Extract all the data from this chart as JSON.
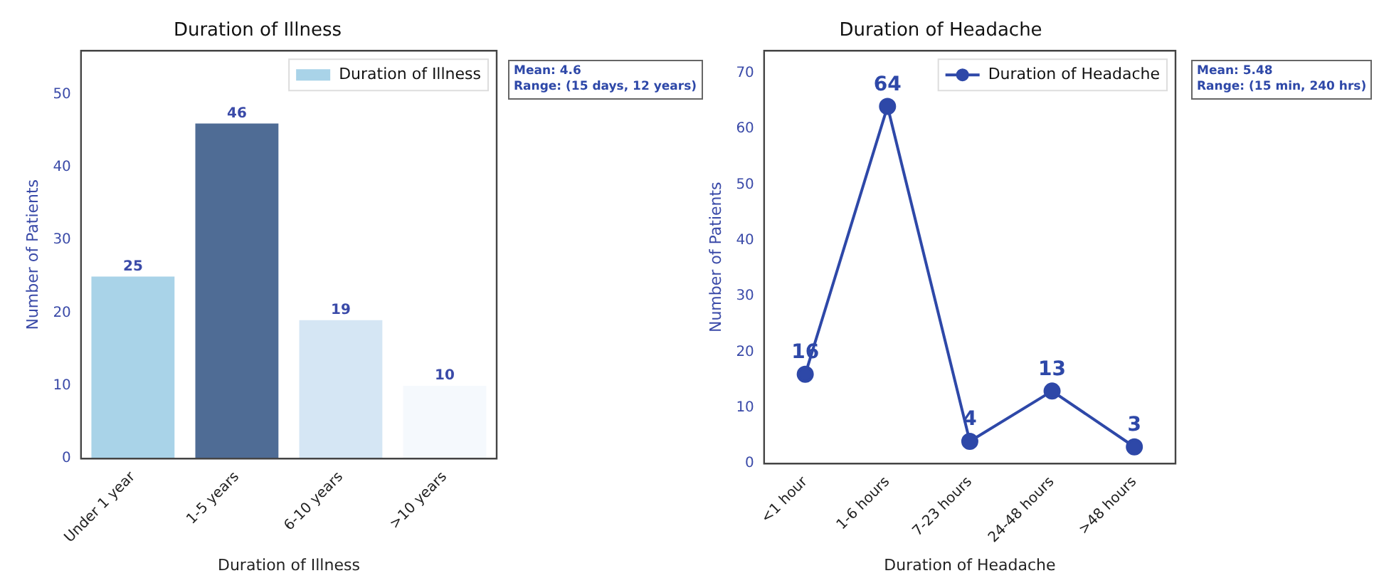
{
  "chart_data": [
    {
      "type": "bar",
      "title": "Duration of Illness",
      "xlabel": "Duration of Illness",
      "ylabel": "Number of Patients",
      "categories": [
        "Under 1 year",
        "1-5 years",
        "6-10 years",
        ">10 years"
      ],
      "series": [
        {
          "name": "Duration of Illness",
          "color": "#a9d3e8",
          "colors": [
            "#a9d3e8",
            "#4f6c95",
            "#d5e6f4",
            "#f5f9fd"
          ],
          "values": [
            25,
            46,
            19,
            10
          ]
        }
      ],
      "ylim": [
        0,
        56
      ],
      "yticks": [
        0,
        10,
        20,
        30,
        40,
        50
      ],
      "grid": false,
      "legend": "top right",
      "data_labels": true,
      "annotations": [
        "Mean: 4.6\nRange: (15 days, 12 years)"
      ]
    },
    {
      "type": "line",
      "title": "Duration of Headache",
      "xlabel": "Duration of Headache",
      "ylabel": "Number of Patients",
      "categories": [
        "<1 hour",
        "1-6 hours",
        "7-23 hours",
        "24-48 hours",
        ">48 hours"
      ],
      "series": [
        {
          "name": "Duration of Headache",
          "color": "#2e48a8",
          "values": [
            16,
            64,
            4,
            13,
            3
          ]
        }
      ],
      "ylim": [
        0,
        74
      ],
      "yticks": [
        0,
        10,
        20,
        30,
        40,
        50,
        60,
        70
      ],
      "grid": false,
      "legend": "top right",
      "marker": "circle",
      "data_labels": true,
      "annotations": [
        "Mean: 5.48\nRange: (15 min, 240 hrs)"
      ]
    }
  ]
}
